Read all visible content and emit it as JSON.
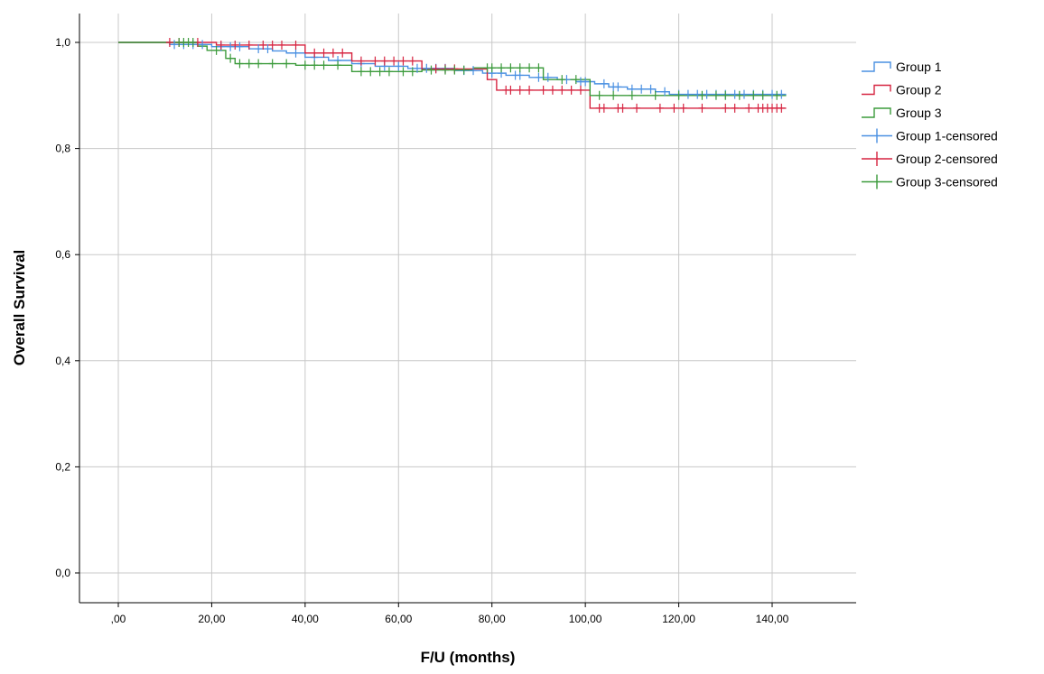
{
  "chart_data": {
    "type": "line",
    "subtype": "kaplan-meier step",
    "title": "",
    "xlabel": "F/U (months)",
    "ylabel": "Overall Survival",
    "xlim": [
      -8,
      157
    ],
    "ylim": [
      -0.05,
      1.05
    ],
    "xticks": [
      0,
      20,
      40,
      60,
      80,
      100,
      120,
      140
    ],
    "xtick_labels": [
      ",00",
      "20,00",
      "40,00",
      "60,00",
      "80,00",
      "100,00",
      "120,00",
      "140,00"
    ],
    "yticks": [
      0,
      0.2,
      0.4,
      0.6,
      0.8,
      1.0
    ],
    "ytick_labels": [
      "0,0",
      "0,2",
      "0,4",
      "0,6",
      "0,8",
      "1,0"
    ],
    "grid": true,
    "legend_position": "top-right outside plot",
    "legend": [
      {
        "label": "Group 1",
        "kind": "line",
        "series": 0
      },
      {
        "label": "Group 2",
        "kind": "line",
        "series": 1
      },
      {
        "label": "Group 3",
        "kind": "line",
        "series": 2
      },
      {
        "label": "Group 1-censored",
        "kind": "censor",
        "series": 0
      },
      {
        "label": "Group 2-censored",
        "kind": "censor",
        "series": 1
      },
      {
        "label": "Group 3-censored",
        "kind": "censor",
        "series": 2
      }
    ],
    "series": [
      {
        "name": "Group 1",
        "color": "#4a90e2",
        "steps": [
          [
            0,
            1.0
          ],
          [
            11,
            0.996
          ],
          [
            20,
            0.992
          ],
          [
            28,
            0.988
          ],
          [
            33,
            0.984
          ],
          [
            36,
            0.98
          ],
          [
            40,
            0.972
          ],
          [
            45,
            0.966
          ],
          [
            50,
            0.96
          ],
          [
            55,
            0.955
          ],
          [
            62,
            0.951
          ],
          [
            72,
            0.947
          ],
          [
            78,
            0.942
          ],
          [
            83,
            0.938
          ],
          [
            88,
            0.934
          ],
          [
            94,
            0.93
          ],
          [
            98,
            0.926
          ],
          [
            102,
            0.922
          ],
          [
            105,
            0.916
          ],
          [
            109,
            0.912
          ],
          [
            115,
            0.907
          ],
          [
            118,
            0.902
          ],
          [
            143,
            0.902
          ]
        ],
        "censored": [
          [
            12,
            0.996
          ],
          [
            14,
            0.996
          ],
          [
            16,
            0.996
          ],
          [
            18,
            0.996
          ],
          [
            22,
            0.992
          ],
          [
            24,
            0.992
          ],
          [
            26,
            0.992
          ],
          [
            30,
            0.988
          ],
          [
            32,
            0.988
          ],
          [
            38,
            0.98
          ],
          [
            42,
            0.972
          ],
          [
            47,
            0.966
          ],
          [
            52,
            0.96
          ],
          [
            57,
            0.955
          ],
          [
            60,
            0.955
          ],
          [
            64,
            0.951
          ],
          [
            66,
            0.951
          ],
          [
            68,
            0.951
          ],
          [
            70,
            0.951
          ],
          [
            74,
            0.947
          ],
          [
            76,
            0.947
          ],
          [
            80,
            0.942
          ],
          [
            82,
            0.942
          ],
          [
            85,
            0.938
          ],
          [
            86,
            0.938
          ],
          [
            90,
            0.934
          ],
          [
            92,
            0.934
          ],
          [
            96,
            0.93
          ],
          [
            99,
            0.926
          ],
          [
            100,
            0.926
          ],
          [
            104,
            0.922
          ],
          [
            106,
            0.916
          ],
          [
            107,
            0.916
          ],
          [
            110,
            0.912
          ],
          [
            112,
            0.912
          ],
          [
            114,
            0.912
          ],
          [
            117,
            0.907
          ],
          [
            120,
            0.902
          ],
          [
            122,
            0.902
          ],
          [
            124,
            0.902
          ],
          [
            126,
            0.902
          ],
          [
            128,
            0.902
          ],
          [
            130,
            0.902
          ],
          [
            132,
            0.902
          ],
          [
            134,
            0.902
          ],
          [
            136,
            0.902
          ],
          [
            138,
            0.902
          ],
          [
            140,
            0.902
          ],
          [
            142,
            0.902
          ]
        ]
      },
      {
        "name": "Group 2",
        "color": "#d62440",
        "steps": [
          [
            0,
            1.0
          ],
          [
            21,
            0.995
          ],
          [
            40,
            0.98
          ],
          [
            50,
            0.965
          ],
          [
            65,
            0.95
          ],
          [
            79,
            0.93
          ],
          [
            81,
            0.91
          ],
          [
            101,
            0.876
          ],
          [
            143,
            0.876
          ]
        ],
        "censored": [
          [
            11,
            1.0
          ],
          [
            13,
            1.0
          ],
          [
            17,
            1.0
          ],
          [
            22,
            0.995
          ],
          [
            25,
            0.995
          ],
          [
            28,
            0.995
          ],
          [
            31,
            0.995
          ],
          [
            33,
            0.995
          ],
          [
            35,
            0.995
          ],
          [
            38,
            0.995
          ],
          [
            42,
            0.98
          ],
          [
            44,
            0.98
          ],
          [
            46,
            0.98
          ],
          [
            48,
            0.98
          ],
          [
            52,
            0.965
          ],
          [
            55,
            0.965
          ],
          [
            57,
            0.965
          ],
          [
            59,
            0.965
          ],
          [
            61,
            0.965
          ],
          [
            63,
            0.965
          ],
          [
            68,
            0.95
          ],
          [
            70,
            0.95
          ],
          [
            72,
            0.95
          ],
          [
            83,
            0.91
          ],
          [
            84,
            0.91
          ],
          [
            86,
            0.91
          ],
          [
            88,
            0.91
          ],
          [
            91,
            0.91
          ],
          [
            93,
            0.91
          ],
          [
            95,
            0.91
          ],
          [
            97,
            0.91
          ],
          [
            99,
            0.91
          ],
          [
            103,
            0.876
          ],
          [
            104,
            0.876
          ],
          [
            107,
            0.876
          ],
          [
            108,
            0.876
          ],
          [
            111,
            0.876
          ],
          [
            116,
            0.876
          ],
          [
            119,
            0.876
          ],
          [
            121,
            0.876
          ],
          [
            125,
            0.876
          ],
          [
            130,
            0.876
          ],
          [
            132,
            0.876
          ],
          [
            135,
            0.876
          ],
          [
            137,
            0.876
          ],
          [
            138,
            0.876
          ],
          [
            139,
            0.876
          ],
          [
            140,
            0.876
          ],
          [
            141,
            0.876
          ],
          [
            142,
            0.876
          ]
        ]
      },
      {
        "name": "Group 3",
        "color": "#3c9b3c",
        "steps": [
          [
            0,
            1.0
          ],
          [
            17,
            0.993
          ],
          [
            19,
            0.985
          ],
          [
            23,
            0.97
          ],
          [
            25,
            0.96
          ],
          [
            38,
            0.957
          ],
          [
            50,
            0.945
          ],
          [
            65,
            0.948
          ],
          [
            76,
            0.952
          ],
          [
            91,
            0.93
          ],
          [
            101,
            0.9
          ],
          [
            143,
            0.9
          ]
        ],
        "censored": [
          [
            13,
            1.0
          ],
          [
            14,
            1.0
          ],
          [
            15,
            1.0
          ],
          [
            16,
            1.0
          ],
          [
            21,
            0.985
          ],
          [
            24,
            0.97
          ],
          [
            26,
            0.96
          ],
          [
            28,
            0.96
          ],
          [
            30,
            0.96
          ],
          [
            33,
            0.96
          ],
          [
            36,
            0.96
          ],
          [
            40,
            0.957
          ],
          [
            42,
            0.957
          ],
          [
            44,
            0.957
          ],
          [
            47,
            0.957
          ],
          [
            52,
            0.945
          ],
          [
            54,
            0.945
          ],
          [
            56,
            0.945
          ],
          [
            58,
            0.945
          ],
          [
            61,
            0.945
          ],
          [
            63,
            0.945
          ],
          [
            67,
            0.948
          ],
          [
            70,
            0.948
          ],
          [
            72,
            0.948
          ],
          [
            74,
            0.948
          ],
          [
            79,
            0.952
          ],
          [
            80,
            0.952
          ],
          [
            82,
            0.952
          ],
          [
            84,
            0.952
          ],
          [
            86,
            0.952
          ],
          [
            88,
            0.952
          ],
          [
            90,
            0.952
          ],
          [
            95,
            0.93
          ],
          [
            98,
            0.93
          ],
          [
            103,
            0.9
          ],
          [
            106,
            0.9
          ],
          [
            110,
            0.9
          ],
          [
            115,
            0.9
          ],
          [
            120,
            0.9
          ],
          [
            125,
            0.9
          ],
          [
            128,
            0.9
          ],
          [
            130,
            0.9
          ],
          [
            133,
            0.9
          ],
          [
            136,
            0.9
          ],
          [
            138,
            0.9
          ],
          [
            141,
            0.9
          ]
        ]
      }
    ]
  }
}
